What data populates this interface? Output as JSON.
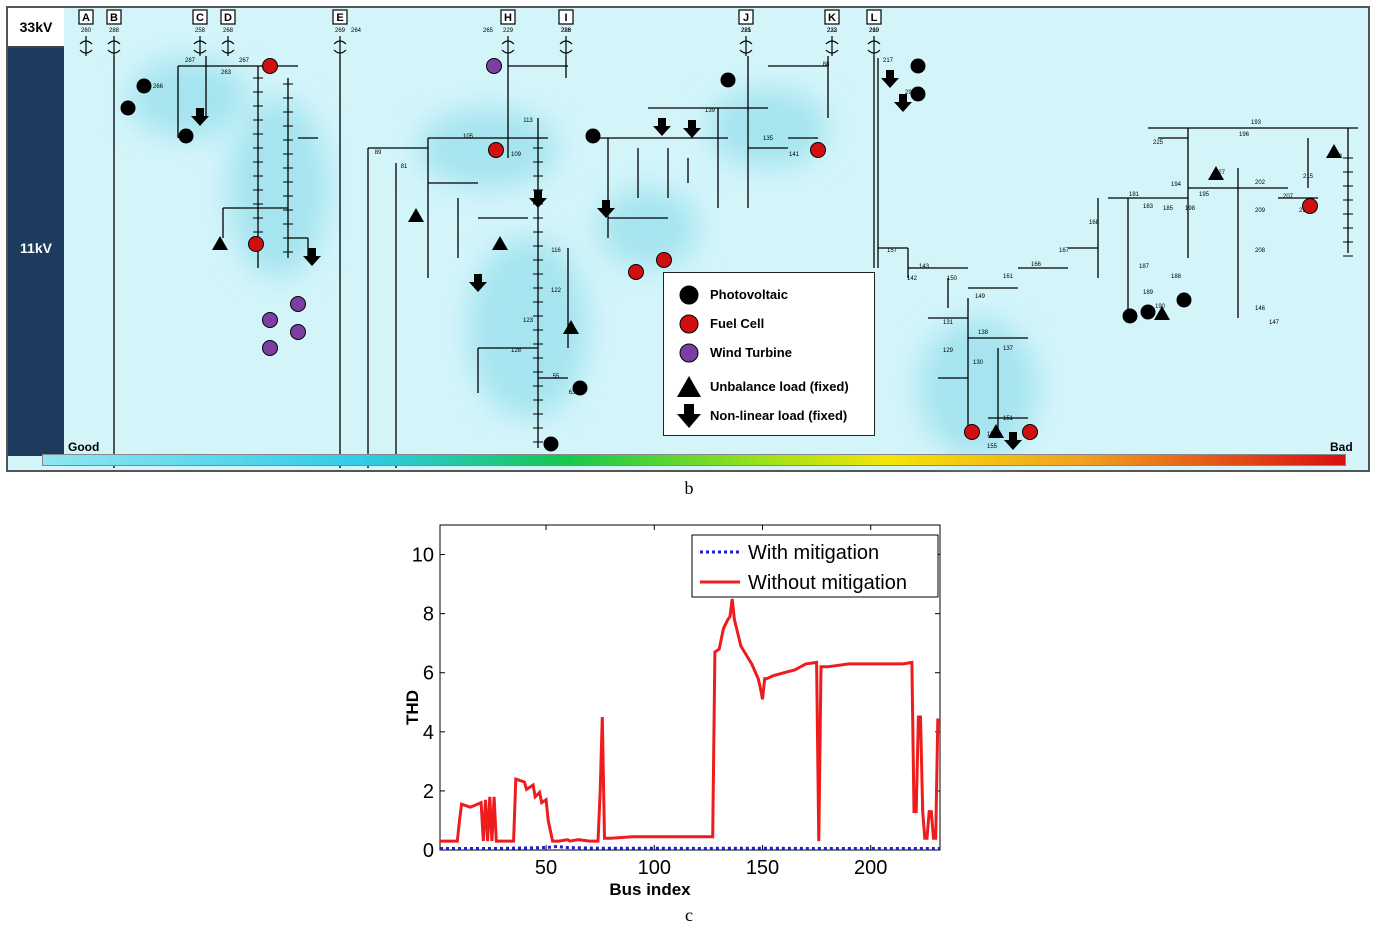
{
  "panel_b": {
    "voltage_top": "33kV",
    "voltage_mid": "11kV",
    "scale_good": "Good",
    "scale_bad": "Bad",
    "feeder_tags": [
      "A",
      "B",
      "C",
      "D",
      "E",
      "H",
      "I",
      "J",
      "K",
      "L"
    ],
    "legend": [
      {
        "symbol": "circle",
        "color": "#000000",
        "label": "Photovoltaic"
      },
      {
        "symbol": "circle",
        "color": "#d01010",
        "label": "Fuel Cell"
      },
      {
        "symbol": "circle",
        "color": "#7a3fa0",
        "label": "Wind Turbine"
      },
      {
        "symbol": "triangle",
        "color": "#000000",
        "label": "Unbalance load (fixed)"
      },
      {
        "symbol": "arrow",
        "color": "#000000",
        "label": "Non-linear load (fixed)"
      }
    ],
    "bus_labels": [
      "260",
      "288",
      "258",
      "268",
      "269",
      "229",
      "228",
      "221",
      "223",
      "269",
      "287",
      "267",
      "266",
      "263",
      "264",
      "265",
      "286",
      "285",
      "232",
      "219",
      "220",
      "216",
      "217",
      "211",
      "215",
      "193",
      "196",
      "225",
      "227",
      "291",
      "290",
      "88",
      "89",
      "81",
      "105",
      "109",
      "113",
      "116",
      "122",
      "123",
      "128",
      "55",
      "63",
      "64",
      "139",
      "141",
      "135",
      "137",
      "138",
      "151",
      "153",
      "155",
      "157",
      "161",
      "166",
      "167",
      "168",
      "181",
      "183",
      "185",
      "187",
      "188",
      "189",
      "190",
      "194",
      "195",
      "198",
      "202",
      "207",
      "209",
      "208",
      "146",
      "147",
      "149",
      "150",
      "143",
      "142",
      "131",
      "129",
      "130"
    ]
  },
  "caption_b": "b",
  "caption_c": "c",
  "chart_data": {
    "type": "line",
    "xlabel": "Bus index",
    "ylabel": "THD",
    "xlim": [
      1,
      232
    ],
    "ylim": [
      0,
      11
    ],
    "xticks": [
      50,
      100,
      150,
      200
    ],
    "yticks": [
      0,
      2,
      4,
      6,
      8,
      10
    ],
    "legend_position": "top-right",
    "series": [
      {
        "name": "With mitigation",
        "color": "#1f1fd6",
        "style": "dotted",
        "x": [
          1,
          25,
          50,
          55,
          60,
          75,
          100,
          125,
          130,
          150,
          175,
          200,
          225,
          232
        ],
        "y": [
          0.05,
          0.05,
          0.08,
          0.12,
          0.08,
          0.06,
          0.06,
          0.05,
          0.06,
          0.06,
          0.05,
          0.05,
          0.05,
          0.05
        ]
      },
      {
        "name": "Without mitigation",
        "color": "#ee1c1c",
        "style": "solid",
        "x": [
          1,
          9,
          10,
          11,
          15,
          20,
          21,
          22,
          23,
          24,
          25,
          26,
          27,
          28,
          30,
          35,
          36,
          40,
          41,
          44,
          45,
          47,
          48,
          50,
          51,
          53,
          54,
          55,
          56,
          60,
          61,
          65,
          70,
          74,
          75,
          76,
          77,
          78,
          80,
          90,
          95,
          100,
          110,
          120,
          127,
          128,
          130,
          132,
          134,
          135,
          136,
          137,
          140,
          145,
          148,
          149,
          150,
          151,
          152,
          155,
          160,
          165,
          170,
          175,
          176,
          177,
          178,
          180,
          190,
          200,
          210,
          215,
          219,
          220,
          221,
          222,
          223,
          224,
          225,
          226,
          227,
          228,
          229,
          230,
          231,
          232
        ],
        "y": [
          0.3,
          0.3,
          1.0,
          1.55,
          1.45,
          1.6,
          0.3,
          1.7,
          0.3,
          1.8,
          0.3,
          1.8,
          0.3,
          0.3,
          0.3,
          0.3,
          2.4,
          2.3,
          2.05,
          2.2,
          1.8,
          1.95,
          1.6,
          1.7,
          1.0,
          0.3,
          0.3,
          0.3,
          0.3,
          0.35,
          0.3,
          0.35,
          0.3,
          0.3,
          2.0,
          4.5,
          0.4,
          0.4,
          0.4,
          0.45,
          0.45,
          0.45,
          0.45,
          0.45,
          0.45,
          6.7,
          6.8,
          7.5,
          7.8,
          7.9,
          8.5,
          7.8,
          6.9,
          6.3,
          5.8,
          5.5,
          5.1,
          5.8,
          5.8,
          5.9,
          6.0,
          6.1,
          6.3,
          6.35,
          0.3,
          6.2,
          6.2,
          6.2,
          6.3,
          6.3,
          6.3,
          6.3,
          6.35,
          1.3,
          1.3,
          4.5,
          4.5,
          1.3,
          0.4,
          0.4,
          1.3,
          1.3,
          0.4,
          0.4,
          4.4,
          4.4
        ]
      }
    ]
  }
}
